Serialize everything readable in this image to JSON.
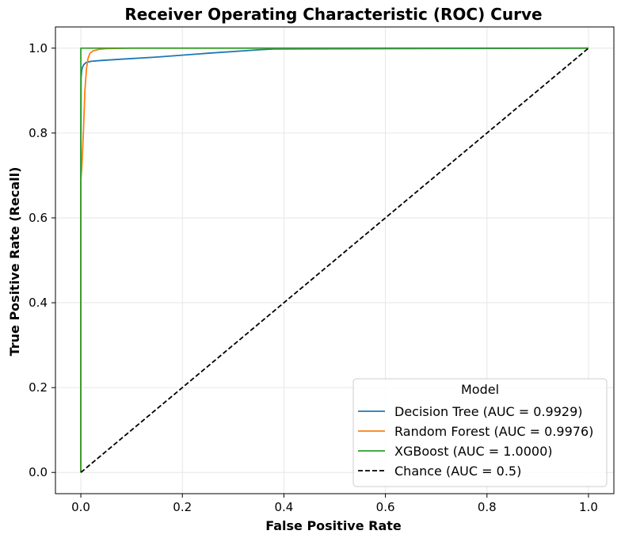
{
  "chart_data": {
    "type": "line",
    "title": "Receiver Operating Characteristic (ROC) Curve",
    "xlabel": "False Positive Rate",
    "ylabel": "True Positive Rate (Recall)",
    "xlim": [
      -0.05,
      1.05
    ],
    "ylim": [
      -0.05,
      1.05
    ],
    "xticks": [
      "0.0",
      "0.2",
      "0.4",
      "0.6",
      "0.8",
      "1.0"
    ],
    "yticks": [
      "0.0",
      "0.2",
      "0.4",
      "0.6",
      "0.8",
      "1.0"
    ],
    "grid": true,
    "legend": {
      "title": "Model",
      "position": "lower-right"
    },
    "series": [
      {
        "name": "Decision Tree (AUC = 0.9929)",
        "color": "#1f77b4",
        "dash": "solid",
        "x": [
          0.0,
          0.0,
          0.0005,
          0.002,
          0.005,
          0.01,
          0.02,
          0.04,
          0.08,
          0.15,
          0.25,
          0.35,
          0.38,
          1.0
        ],
        "y": [
          0.0,
          0.7,
          0.93,
          0.95,
          0.96,
          0.966,
          0.969,
          0.971,
          0.974,
          0.979,
          0.988,
          0.996,
          0.998,
          1.0
        ]
      },
      {
        "name": "Random Forest (AUC = 0.9976)",
        "color": "#ff7f0e",
        "dash": "solid",
        "x": [
          0.0,
          0.0,
          0.002,
          0.005,
          0.008,
          0.011,
          0.014,
          0.018,
          0.025,
          0.035,
          0.05,
          0.1,
          1.0
        ],
        "y": [
          0.0,
          0.69,
          0.72,
          0.8,
          0.9,
          0.95,
          0.975,
          0.988,
          0.994,
          0.997,
          0.999,
          1.0,
          1.0
        ]
      },
      {
        "name": "XGBoost (AUC = 1.0000)",
        "color": "#2ca02c",
        "dash": "solid",
        "x": [
          0.0,
          0.0,
          0.0,
          1.0
        ],
        "y": [
          0.0,
          0.68,
          1.0,
          1.0
        ]
      },
      {
        "name": "Chance (AUC = 0.5)",
        "color": "#000000",
        "dash": "dashed",
        "x": [
          0.0,
          1.0
        ],
        "y": [
          0.0,
          1.0
        ]
      }
    ]
  }
}
